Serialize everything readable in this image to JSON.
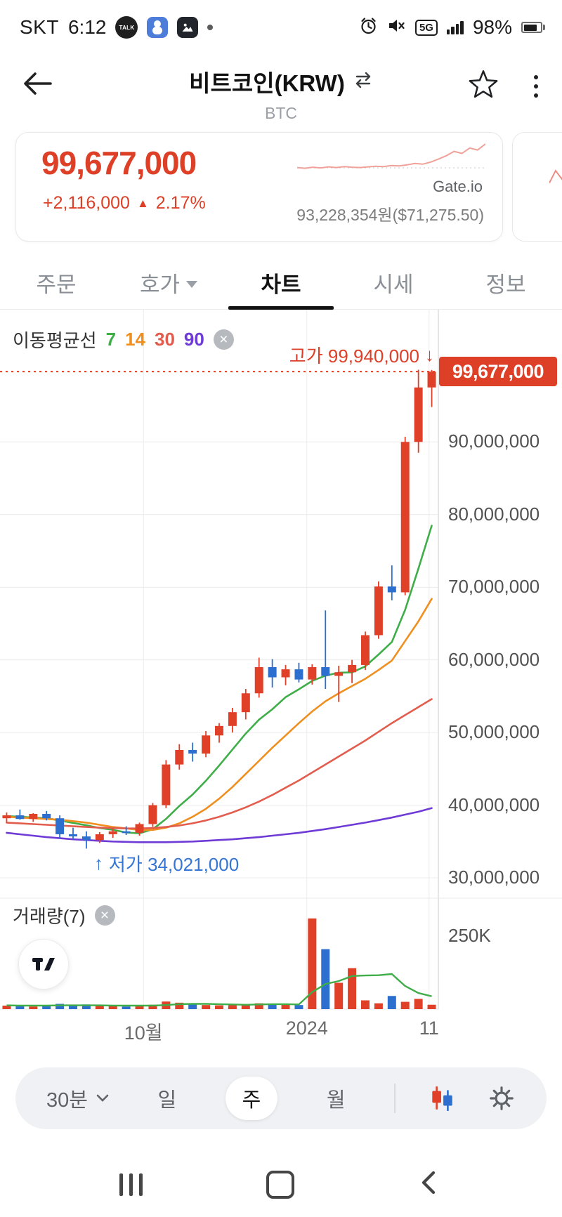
{
  "status_bar": {
    "carrier": "SKT",
    "time": "6:12",
    "kakao_label": "TALK",
    "network_badge": "5G",
    "battery_percent": "98%"
  },
  "icons": {
    "close": "×",
    "down_arrow": "↓",
    "up_arrow": "↑",
    "up_triangle": "▲"
  },
  "header": {
    "title": "비트코인(KRW)",
    "subtitle": "BTC"
  },
  "price_card": {
    "price": "99,677,000",
    "change_amount": "+2,116,000",
    "change_percent": "2.17%",
    "exchange": "Gate.io",
    "global_price": "93,228,354원($71,275.50)",
    "sparkline": [
      0.3,
      0.28,
      0.31,
      0.29,
      0.32,
      0.3,
      0.33,
      0.31,
      0.3,
      0.32,
      0.34,
      0.33,
      0.36,
      0.35,
      0.38,
      0.42,
      0.4,
      0.46,
      0.55,
      0.65,
      0.78,
      0.72,
      0.88,
      0.82,
      1.0
    ]
  },
  "next_card": {
    "sparkline": [
      0.25,
      0.55,
      0.35,
      0.65,
      0.45,
      0.85,
      0.55,
      0.95
    ]
  },
  "tabs": [
    {
      "label": "주문"
    },
    {
      "label": "호가"
    },
    {
      "label": "차트"
    },
    {
      "label": "시세"
    },
    {
      "label": "정보"
    }
  ],
  "chart": {
    "legend_title": "이동평균선",
    "legend_periods": [
      {
        "label": "7",
        "color": "#3fae49"
      },
      {
        "label": "14",
        "color": "#ef8f1f"
      },
      {
        "label": "30",
        "color": "#e25d4e"
      },
      {
        "label": "90",
        "color": "#6f3bd6"
      }
    ],
    "high_label": "고가 99,940,000",
    "low_label": "저가 34,021,000",
    "current_price_label": "99,677,000",
    "volume_legend": "거래량(7)"
  },
  "chart_data": {
    "type": "candlestick",
    "title": "BTC/KRW weekly chart",
    "price_unit": "KRW millions",
    "volume_unit": "K",
    "current_price": 99.677,
    "high_marker": 99.94,
    "low_marker": 34.021,
    "price_domain": [
      27.2,
      108.2
    ],
    "volume_max": 360,
    "y_ticks": [
      {
        "value": 90,
        "label": "90,000,000"
      },
      {
        "value": 80,
        "label": "80,000,000"
      },
      {
        "value": 70,
        "label": "70,000,000"
      },
      {
        "value": 60,
        "label": "60,000,000"
      },
      {
        "value": 50,
        "label": "50,000,000"
      },
      {
        "value": 40,
        "label": "40,000,000"
      },
      {
        "value": 30,
        "label": "30,000,000"
      }
    ],
    "volume_ticks": [
      {
        "value": 250,
        "label": "250K"
      }
    ],
    "x_labels": [
      {
        "idx": 10.3,
        "label": "10월"
      },
      {
        "idx": 22.6,
        "label": "2024"
      },
      {
        "idx": 31.8,
        "label": "11"
      }
    ],
    "colors": {
      "up": "#e04028",
      "down": "#2d6fce",
      "grid": "#ececec",
      "axis_line": "#dcdcdc",
      "current_line": "#dd3f27",
      "volume_ma": "#3fae49"
    },
    "candles": [
      {
        "o": 38.2,
        "h": 39.0,
        "l": 37.6,
        "c": 38.6
      },
      {
        "o": 38.6,
        "h": 39.4,
        "l": 38.0,
        "c": 38.1
      },
      {
        "o": 38.1,
        "h": 38.9,
        "l": 37.7,
        "c": 38.8
      },
      {
        "o": 38.8,
        "h": 39.2,
        "l": 37.9,
        "c": 38.2
      },
      {
        "o": 38.2,
        "h": 38.6,
        "l": 35.4,
        "c": 36.0
      },
      {
        "o": 36.0,
        "h": 36.9,
        "l": 35.3,
        "c": 35.7
      },
      {
        "o": 35.7,
        "h": 36.4,
        "l": 34.021,
        "c": 35.2
      },
      {
        "o": 35.2,
        "h": 36.3,
        "l": 34.8,
        "c": 36.0
      },
      {
        "o": 36.0,
        "h": 36.8,
        "l": 35.5,
        "c": 36.4
      },
      {
        "o": 36.4,
        "h": 37.1,
        "l": 35.9,
        "c": 36.2
      },
      {
        "o": 36.2,
        "h": 37.6,
        "l": 35.8,
        "c": 37.4
      },
      {
        "o": 37.4,
        "h": 40.3,
        "l": 37.0,
        "c": 40.0
      },
      {
        "o": 40.0,
        "h": 46.2,
        "l": 39.6,
        "c": 45.6
      },
      {
        "o": 45.6,
        "h": 48.4,
        "l": 44.9,
        "c": 47.6
      },
      {
        "o": 47.6,
        "h": 48.6,
        "l": 46.0,
        "c": 47.1
      },
      {
        "o": 47.1,
        "h": 50.2,
        "l": 46.6,
        "c": 49.6
      },
      {
        "o": 49.6,
        "h": 51.3,
        "l": 48.6,
        "c": 50.9
      },
      {
        "o": 50.9,
        "h": 53.4,
        "l": 50.0,
        "c": 52.8
      },
      {
        "o": 52.8,
        "h": 56.0,
        "l": 51.8,
        "c": 55.4
      },
      {
        "o": 55.4,
        "h": 60.3,
        "l": 54.8,
        "c": 59.0
      },
      {
        "o": 59.0,
        "h": 60.1,
        "l": 56.2,
        "c": 57.6
      },
      {
        "o": 57.6,
        "h": 59.3,
        "l": 56.5,
        "c": 58.7
      },
      {
        "o": 58.7,
        "h": 59.6,
        "l": 56.9,
        "c": 57.3
      },
      {
        "o": 57.3,
        "h": 59.4,
        "l": 56.6,
        "c": 59.0
      },
      {
        "o": 59.0,
        "h": 66.8,
        "l": 56.0,
        "c": 57.8
      },
      {
        "o": 57.8,
        "h": 59.2,
        "l": 54.2,
        "c": 58.3
      },
      {
        "o": 58.3,
        "h": 60.0,
        "l": 56.8,
        "c": 59.3
      },
      {
        "o": 59.3,
        "h": 63.9,
        "l": 58.6,
        "c": 63.4
      },
      {
        "o": 63.4,
        "h": 70.8,
        "l": 62.9,
        "c": 70.1
      },
      {
        "o": 70.1,
        "h": 73.0,
        "l": 68.2,
        "c": 69.3
      },
      {
        "o": 69.3,
        "h": 90.7,
        "l": 68.9,
        "c": 90.0
      },
      {
        "o": 90.0,
        "h": 99.94,
        "l": 88.5,
        "c": 97.5
      },
      {
        "o": 97.5,
        "h": 99.9,
        "l": 94.8,
        "c": 99.677
      }
    ],
    "moving_averages": [
      {
        "period": 7,
        "color": "#3fae49",
        "values": [
          38.5,
          38.4,
          38.3,
          38.2,
          37.9,
          37.55,
          37.23,
          36.86,
          36.61,
          36.24,
          36.13,
          36.7,
          38.11,
          39.89,
          41.47,
          43.36,
          45.46,
          47.66,
          49.86,
          51.77,
          53.2,
          54.86,
          55.96,
          57.11,
          57.83,
          58.24,
          58.29,
          59.11,
          60.74,
          62.46,
          66.89,
          72.56,
          78.47
        ]
      },
      {
        "period": 14,
        "color": "#ef8f1f",
        "values": [
          38.4,
          38.3,
          38.2,
          38.1,
          38.0,
          37.8,
          37.6,
          37.3,
          37.0,
          36.8,
          36.6,
          36.6,
          36.9,
          37.5,
          38.4,
          39.5,
          40.9,
          42.5,
          44.3,
          46.1,
          47.9,
          49.6,
          51.3,
          52.9,
          54.3,
          55.4,
          56.4,
          57.4,
          58.6,
          59.9,
          62.6,
          65.3,
          68.4
        ]
      },
      {
        "period": 30,
        "color": "#e25d4e",
        "values": [
          37.6,
          37.5,
          37.4,
          37.3,
          37.2,
          37.1,
          37.0,
          36.9,
          36.85,
          36.8,
          36.8,
          36.85,
          37.0,
          37.2,
          37.5,
          37.9,
          38.4,
          39.0,
          39.7,
          40.5,
          41.4,
          42.4,
          43.4,
          44.5,
          45.6,
          46.7,
          47.8,
          48.9,
          50.1,
          51.3,
          52.4,
          53.5,
          54.6
        ]
      },
      {
        "period": 90,
        "color": "#6f3bd6",
        "values": [
          36.2,
          36.0,
          35.8,
          35.6,
          35.45,
          35.3,
          35.2,
          35.1,
          35.0,
          34.95,
          34.9,
          34.9,
          34.9,
          34.95,
          35.0,
          35.1,
          35.2,
          35.3,
          35.45,
          35.6,
          35.8,
          36.0,
          36.2,
          36.45,
          36.7,
          37.0,
          37.3,
          37.6,
          37.95,
          38.3,
          38.7,
          39.1,
          39.6
        ]
      }
    ],
    "volumes": [
      12,
      10,
      9,
      11,
      18,
      14,
      16,
      12,
      10,
      9,
      11,
      15,
      26,
      22,
      16,
      14,
      13,
      14,
      17,
      20,
      18,
      15,
      14,
      310,
      205,
      90,
      140,
      30,
      20,
      45,
      25,
      35,
      15
    ],
    "volume_ma7": [
      13,
      12,
      12,
      12,
      13,
      13,
      13,
      13,
      12,
      12,
      12,
      12,
      14,
      17,
      18,
      18,
      17,
      16,
      15,
      16,
      17,
      17,
      16,
      58,
      86,
      96,
      113,
      115,
      116,
      120,
      79,
      55,
      44
    ]
  },
  "toolbar": {
    "interval": "30분",
    "options": [
      {
        "label": "일",
        "selected": false
      },
      {
        "label": "주",
        "selected": true
      },
      {
        "label": "월",
        "selected": false
      }
    ]
  }
}
